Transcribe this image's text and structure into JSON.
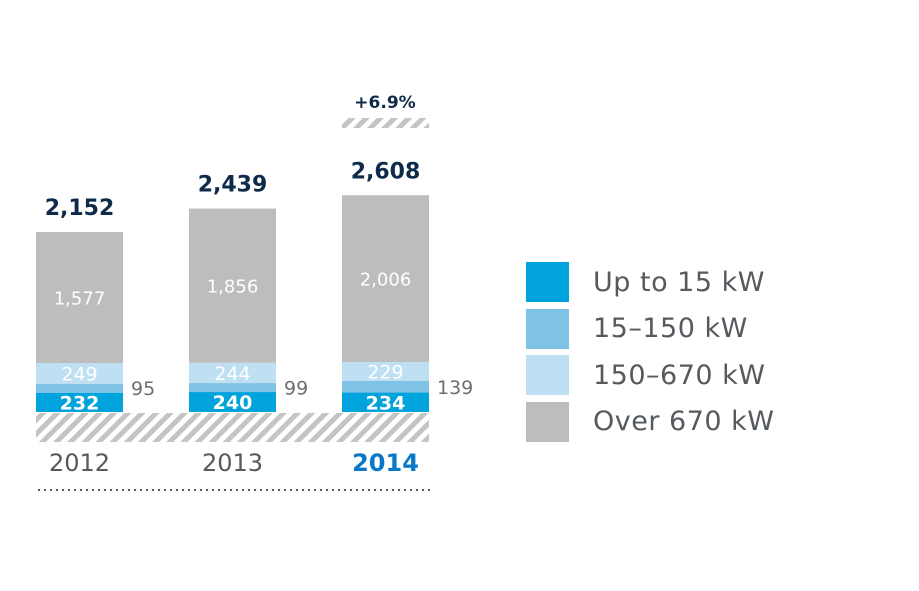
{
  "chart_data": {
    "type": "bar",
    "stacked": true,
    "categories": [
      "2012",
      "2013",
      "2014"
    ],
    "highlight_category": "2014",
    "totals": [
      "2,152",
      "2,439",
      "2,608"
    ],
    "series": [
      {
        "name": "Up to 15 kW",
        "color": "#00a3dc",
        "text_color": "#ffffff",
        "values": [
          232,
          240,
          234
        ]
      },
      {
        "name": "15–150 kW",
        "color": "#7ec2e6",
        "text_color": "#ffffff",
        "values": [
          95,
          99,
          139
        ]
      },
      {
        "name": "150–670 kW",
        "color": "#bfe0f3",
        "text_color": "#ffffff",
        "values": [
          249,
          244,
          229
        ]
      },
      {
        "name": "Over 670 kW",
        "color": "#bdbdbd",
        "text_color": "#ffffff",
        "values": [
          1577,
          1856,
          2006
        ]
      }
    ],
    "value_labels": [
      [
        "232",
        "95",
        "249",
        "1,577"
      ],
      [
        "240",
        "99",
        "244",
        "1,856"
      ],
      [
        "234",
        "139",
        "229",
        "2,006"
      ]
    ],
    "growth_label": "+6.9%",
    "legend_position": "right",
    "colors": {
      "total_text": "#0f2b4a",
      "year_text": "#555a5f",
      "year_highlight": "#0a78c8",
      "side_label": "#6b6f73",
      "hatch": "#c4c4c4"
    }
  }
}
